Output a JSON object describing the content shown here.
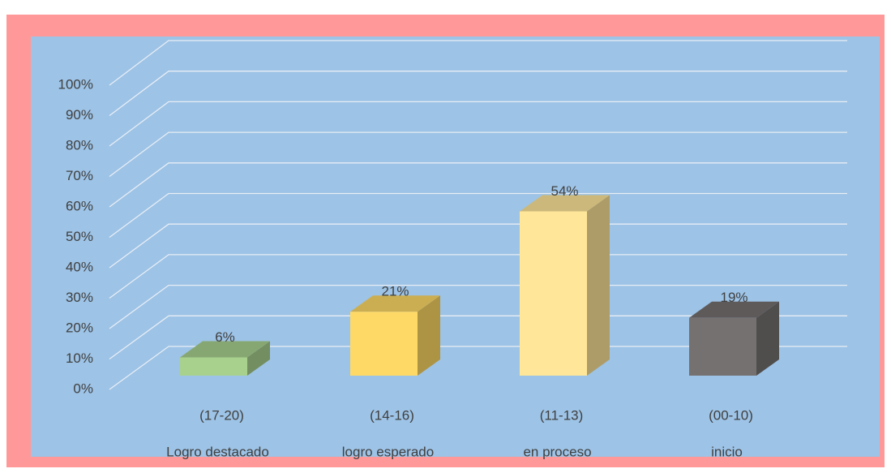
{
  "chart_data": {
    "type": "bar3d",
    "categories": [
      "(17-20)",
      "(14-16)",
      "(11-13)",
      "(00-10)"
    ],
    "category_descriptions": [
      "Logro destacado",
      "logro esperado",
      "en proceso",
      "inicio"
    ],
    "values": [
      6,
      21,
      54,
      19
    ],
    "value_labels": [
      "6%",
      "21%",
      "54%",
      "19%"
    ],
    "colors": [
      "#a9d18e",
      "#ffd966",
      "#ffe699",
      "#767171"
    ],
    "ylim": [
      0,
      100
    ],
    "yticks": [
      {
        "value": 0,
        "label": "0%"
      },
      {
        "value": 10,
        "label": "10%"
      },
      {
        "value": 20,
        "label": "20%"
      },
      {
        "value": 30,
        "label": "30%"
      },
      {
        "value": 40,
        "label": "40%"
      },
      {
        "value": 50,
        "label": "50%"
      },
      {
        "value": 60,
        "label": "60%"
      },
      {
        "value": 70,
        "label": "70%"
      },
      {
        "value": 80,
        "label": "80%"
      },
      {
        "value": 90,
        "label": "90%"
      },
      {
        "value": 100,
        "label": "100%"
      }
    ],
    "grid": true
  }
}
